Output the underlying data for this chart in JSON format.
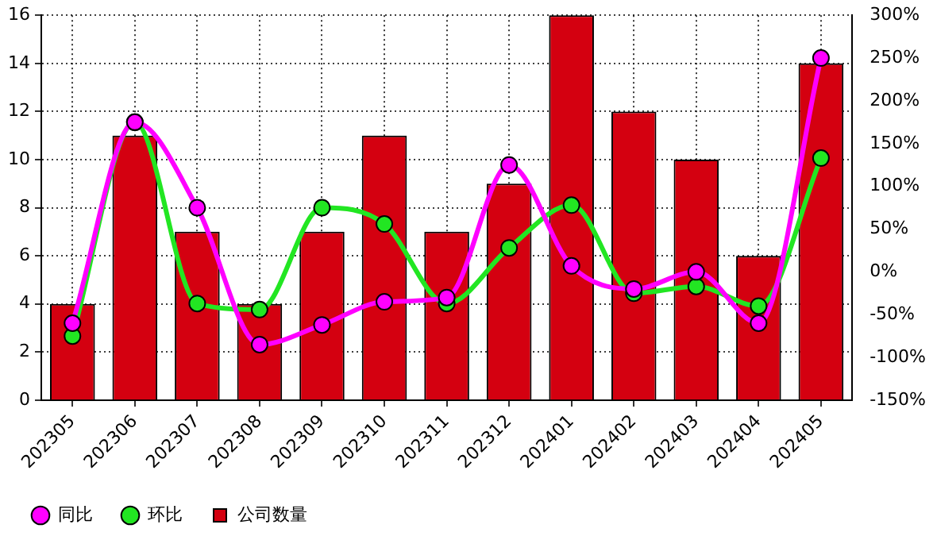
{
  "chart_data": {
    "type": "bar",
    "categories": [
      "202305",
      "202306",
      "202307",
      "202308",
      "202309",
      "202310",
      "202311",
      "202312",
      "202401",
      "202402",
      "202403",
      "202404",
      "202405"
    ],
    "series": [
      {
        "name": "同比",
        "type": "line",
        "axis": "y2",
        "color": "#ff00ff",
        "values": [
          -60,
          175,
          75,
          -85,
          -62,
          -35,
          -30,
          125,
          7,
          -20,
          0,
          -60,
          250
        ]
      },
      {
        "name": "环比",
        "type": "line",
        "axis": "y2",
        "color": "#22e622",
        "values": [
          -75,
          175,
          -37,
          -44,
          75,
          56,
          -37,
          28,
          78,
          -25,
          -17,
          -40,
          133
        ]
      },
      {
        "name": "公司数量",
        "color": "#d40010",
        "values": [
          4,
          11,
          7,
          4,
          7,
          11,
          7,
          9,
          16,
          12,
          10,
          6,
          14
        ]
      }
    ],
    "ylim": [
      0,
      16
    ],
    "yticks": [
      0,
      2,
      4,
      6,
      8,
      10,
      12,
      14,
      16
    ],
    "y2lim": [
      -150,
      300
    ],
    "y2ticks": [
      {
        "value": -150,
        "label": "-150%"
      },
      {
        "value": -100,
        "label": "-100%"
      },
      {
        "value": -50,
        "label": "-50%"
      },
      {
        "value": 0,
        "label": "0%"
      },
      {
        "value": 50,
        "label": "50%"
      },
      {
        "value": 100,
        "label": "100%"
      },
      {
        "value": 150,
        "label": "150%"
      },
      {
        "value": 200,
        "label": "200%"
      },
      {
        "value": 250,
        "label": "250%"
      },
      {
        "value": 300,
        "label": "300%"
      }
    ],
    "grid": true,
    "legend": "bottom left",
    "marker": "circle",
    "line_style": "solid"
  }
}
